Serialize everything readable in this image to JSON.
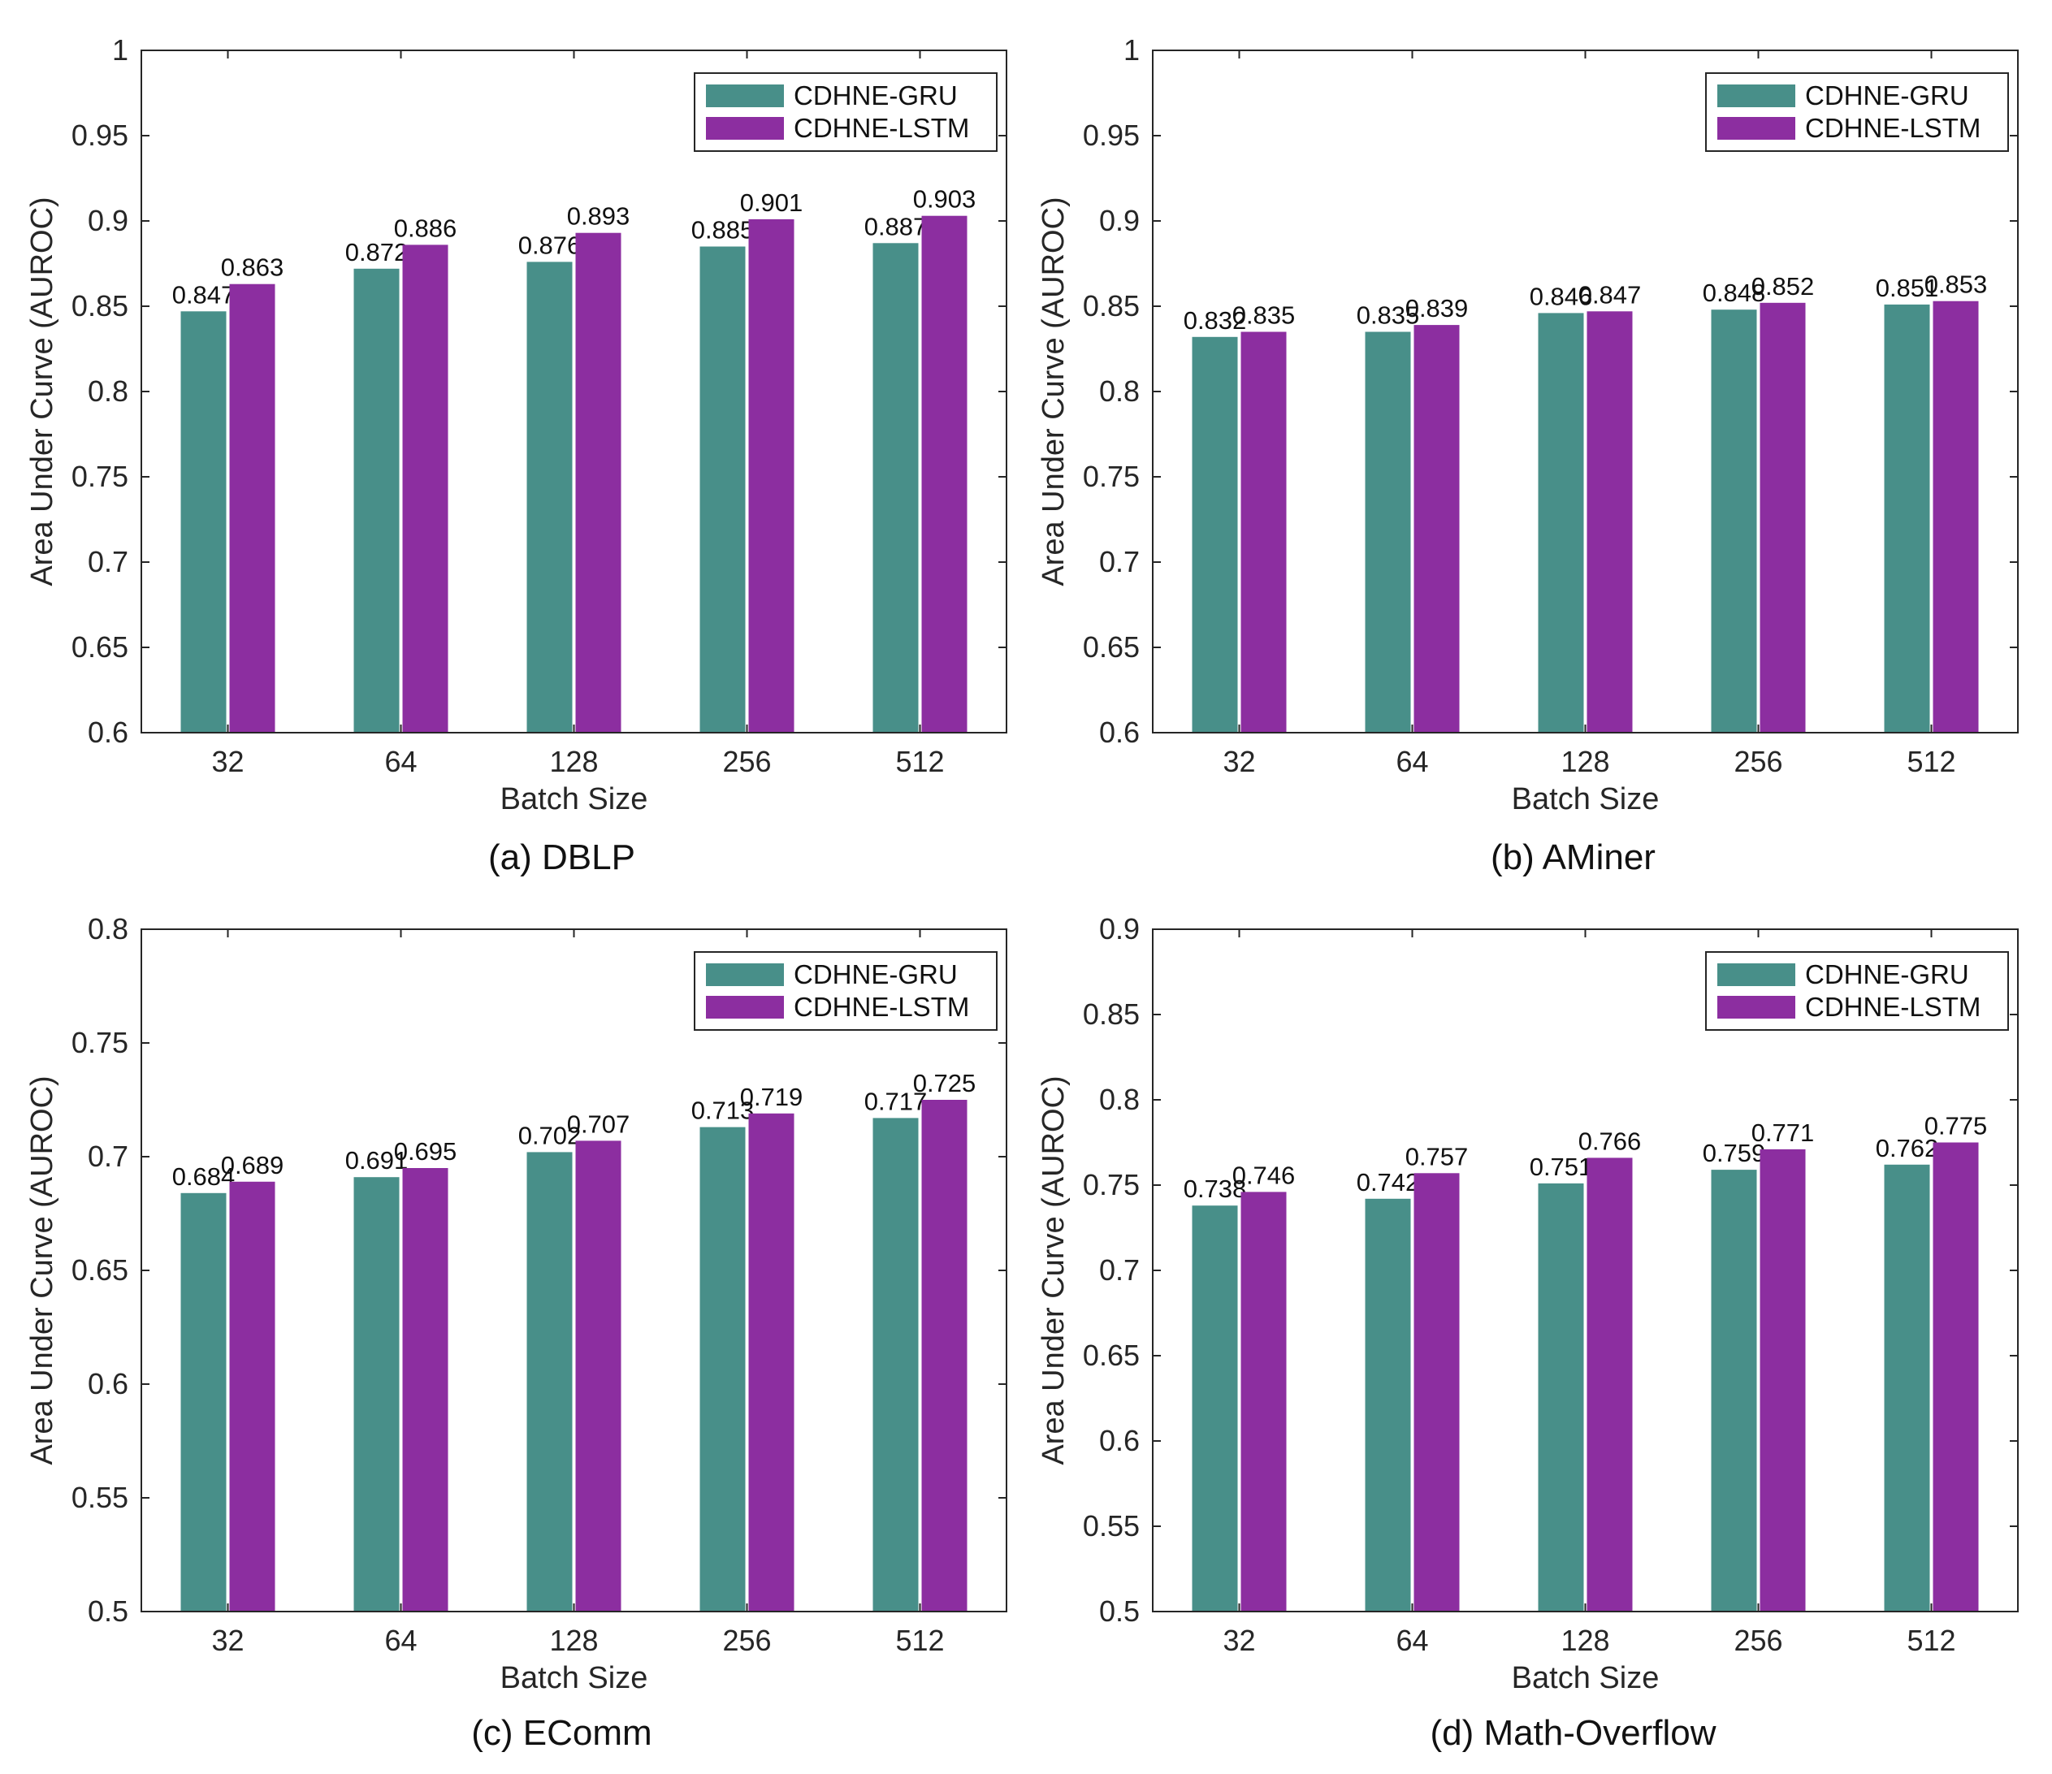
{
  "colors": {
    "gru": "#488f89",
    "lstm": "#8c2ea0",
    "axis": "#262626"
  },
  "chart_data": [
    {
      "type": "bar",
      "caption": "(a) DBLP",
      "xlabel": "Batch Size",
      "ylabel": "Area Under Curve (AUROC)",
      "categories": [
        "32",
        "64",
        "128",
        "256",
        "512"
      ],
      "ylim": [
        0.6,
        1
      ],
      "yticks": [
        "0.6",
        "0.65",
        "0.7",
        "0.75",
        "0.8",
        "0.85",
        "0.9",
        "0.95",
        "1"
      ],
      "legend": "top-right",
      "series": [
        {
          "name": "CDHNE-GRU",
          "values": [
            0.847,
            0.872,
            0.876,
            0.885,
            0.887
          ],
          "labels": [
            "0.847",
            "0.872",
            "0.876",
            "0.885",
            "0.887"
          ]
        },
        {
          "name": "CDHNE-LSTM",
          "values": [
            0.863,
            0.886,
            0.893,
            0.901,
            0.903
          ],
          "labels": [
            "0.863",
            "0.886",
            "0.893",
            "0.901",
            "0.903"
          ]
        }
      ]
    },
    {
      "type": "bar",
      "caption": "(b) AMiner",
      "xlabel": "Batch Size",
      "ylabel": "Area Under Curve (AUROC)",
      "categories": [
        "32",
        "64",
        "128",
        "256",
        "512"
      ],
      "ylim": [
        0.6,
        1
      ],
      "yticks": [
        "0.6",
        "0.65",
        "0.7",
        "0.75",
        "0.8",
        "0.85",
        "0.9",
        "0.95",
        "1"
      ],
      "legend": "top-right",
      "series": [
        {
          "name": "CDHNE-GRU",
          "values": [
            0.832,
            0.835,
            0.846,
            0.848,
            0.851
          ],
          "labels": [
            "0.832",
            "0.835",
            "0.846",
            "0.848",
            "0.851"
          ]
        },
        {
          "name": "CDHNE-LSTM",
          "values": [
            0.835,
            0.839,
            0.847,
            0.852,
            0.853
          ],
          "labels": [
            "0.835",
            "0.839",
            "0.847",
            "0.852",
            "0.853"
          ]
        }
      ]
    },
    {
      "type": "bar",
      "caption": "(c) EComm",
      "xlabel": "Batch Size",
      "ylabel": "Area Under Curve (AUROC)",
      "categories": [
        "32",
        "64",
        "128",
        "256",
        "512"
      ],
      "ylim": [
        0.5,
        0.8
      ],
      "yticks": [
        "0.5",
        "0.55",
        "0.6",
        "0.65",
        "0.7",
        "0.75",
        "0.8"
      ],
      "legend": "top-right",
      "series": [
        {
          "name": "CDHNE-GRU",
          "values": [
            0.684,
            0.691,
            0.702,
            0.713,
            0.717
          ],
          "labels": [
            "0.684",
            "0.691",
            "0.702",
            "0.713",
            "0.717"
          ]
        },
        {
          "name": "CDHNE-LSTM",
          "values": [
            0.689,
            0.695,
            0.707,
            0.719,
            0.725
          ],
          "labels": [
            "0.689",
            "0.695",
            "0.707",
            "0.719",
            "0.725"
          ]
        }
      ]
    },
    {
      "type": "bar",
      "caption": "(d) Math-Overflow",
      "xlabel": "Batch Size",
      "ylabel": "Area Under Curve (AUROC)",
      "categories": [
        "32",
        "64",
        "128",
        "256",
        "512"
      ],
      "ylim": [
        0.5,
        0.9
      ],
      "yticks": [
        "0.5",
        "0.55",
        "0.6",
        "0.65",
        "0.7",
        "0.75",
        "0.8",
        "0.85",
        "0.9"
      ],
      "legend": "top-right",
      "series": [
        {
          "name": "CDHNE-GRU",
          "values": [
            0.738,
            0.742,
            0.751,
            0.759,
            0.762
          ],
          "labels": [
            "0.738",
            "0.742",
            "0.751",
            "0.759",
            "0.762"
          ]
        },
        {
          "name": "CDHNE-LSTM",
          "values": [
            0.746,
            0.757,
            0.766,
            0.771,
            0.775
          ],
          "labels": [
            "0.746",
            "0.757",
            "0.766",
            "0.771",
            "0.775"
          ]
        }
      ]
    }
  ]
}
